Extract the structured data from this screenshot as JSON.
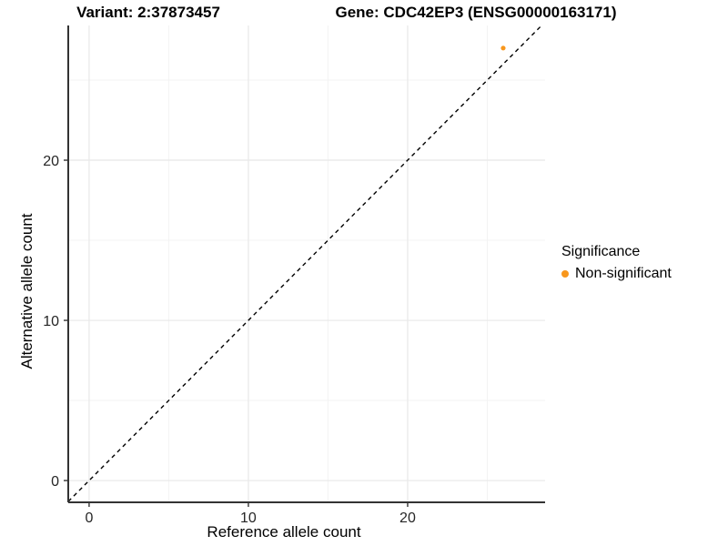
{
  "colors": {
    "point_orange": "#F8971D",
    "axis_line": "#333333",
    "grid_major": "#e8e8e8",
    "grid_minor": "#f3f3f3",
    "tick_text": "#262626",
    "identity_line": "#000000",
    "background": "#ffffff"
  },
  "chart_data": {
    "type": "scatter",
    "title_left": "Variant: 2:37873457",
    "title_right": "Gene: CDC42EP3 (ENSG00000163171)",
    "xlabel": "Reference allele count",
    "ylabel": "Alternative allele count",
    "xlim": [
      -1.31,
      28.63
    ],
    "ylim": [
      -1.36,
      28.41
    ],
    "x_breaks": [
      0,
      10,
      20
    ],
    "y_breaks": [
      0,
      10,
      20
    ],
    "x_tick_labels": [
      "0",
      "10",
      "20"
    ],
    "y_tick_labels": [
      "0",
      "10",
      "20"
    ],
    "x_minor_breaks": [
      5,
      15,
      25
    ],
    "y_minor_breaks": [
      5,
      15,
      25
    ],
    "grid": true,
    "points": [
      {
        "x": 26,
        "y": 27,
        "series": "Non-significant",
        "color": "#F8971D"
      }
    ],
    "identity_line": {
      "type": "y=x",
      "style": "dashed",
      "color": "#000000"
    },
    "legend": {
      "title": "Significance",
      "position": "right",
      "items": [
        {
          "label": "Non-significant",
          "color": "#F8971D"
        }
      ]
    }
  }
}
